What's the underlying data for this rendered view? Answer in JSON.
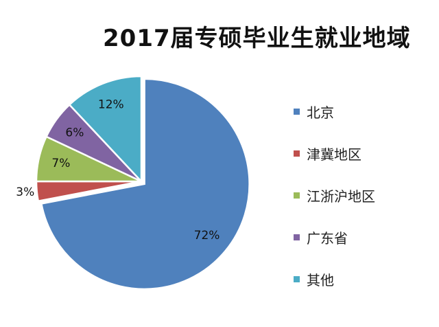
{
  "chart_data": {
    "type": "pie",
    "title": "2017届专硕毕业生就业地域",
    "categories": [
      "北京",
      "津冀地区",
      "江浙沪地区",
      "广东省",
      "其他"
    ],
    "values": [
      72,
      3,
      7,
      6,
      12
    ],
    "labels": [
      "72%",
      "3%",
      "7%",
      "6%",
      "12%"
    ],
    "colors": [
      "#4F81BD",
      "#C0504D",
      "#9BBB59",
      "#8064A2",
      "#4BACC6"
    ],
    "exploded": "北京",
    "legend": "right",
    "start": "12 o'clock, clockwise"
  }
}
